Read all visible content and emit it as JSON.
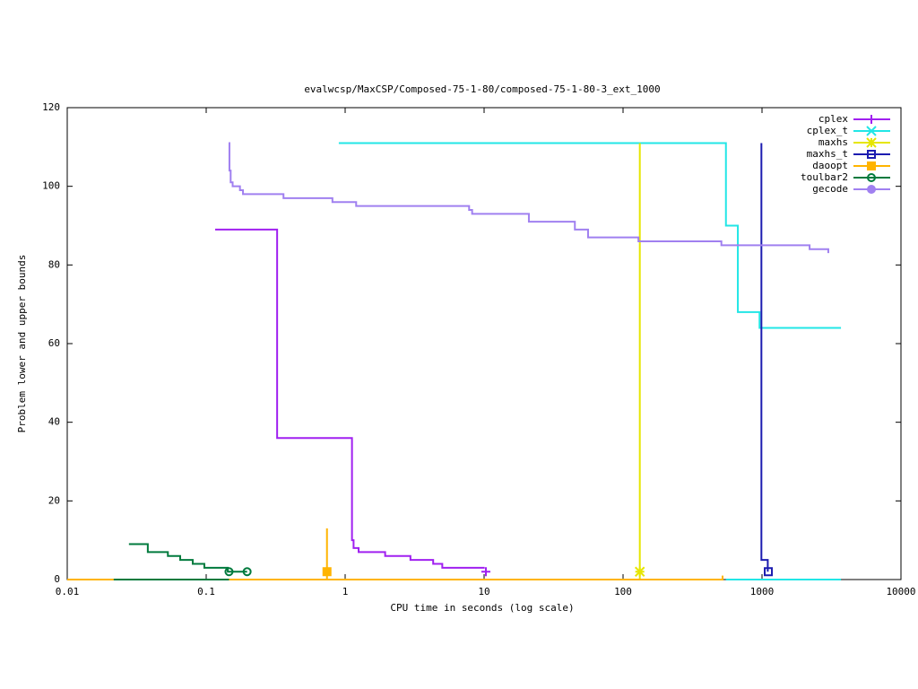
{
  "chart_data": {
    "type": "line",
    "title": "evalwcsp/MaxCSP/Composed-75-1-80/composed-75-1-80-3_ext_1000",
    "x_label": "CPU time in seconds (log scale)",
    "y_label": "Problem lower and upper bounds",
    "x_log": true,
    "line_shape": "steps",
    "xlim": [
      0.01,
      10000
    ],
    "ylim": [
      0,
      120
    ],
    "xticks": [
      0.01,
      0.1,
      1,
      10,
      100,
      1000,
      10000
    ],
    "yticks": [
      0,
      20,
      40,
      60,
      80,
      100,
      120
    ],
    "legend": "top-right",
    "series": [
      {
        "name": "cplex",
        "color": "#a020f0",
        "marker": "plus",
        "x": [
          0.116,
          0.324,
          1.12,
          1.15,
          1.25,
          1.94,
          2.95,
          4.3,
          5.0,
          10.1
        ],
        "values": [
          89,
          36,
          10,
          8,
          7,
          6,
          5,
          4,
          3,
          3
        ],
        "marker_x": [
          10.3
        ],
        "marker_values": [
          2
        ]
      },
      {
        "name": "cplex_t",
        "color": "#22e6e6",
        "marker": "cross",
        "x": [
          0.9,
          550,
          670,
          960,
          3700
        ],
        "values": [
          111,
          90,
          68,
          64,
          64
        ],
        "lower_x": [
          550,
          3700
        ],
        "lower_values": [
          0,
          0
        ]
      },
      {
        "name": "maxhs",
        "color": "#e6e600",
        "marker": "star",
        "x": [
          132,
          132
        ],
        "values": [
          111,
          0
        ],
        "marker_x": [
          132
        ],
        "marker_values": [
          2
        ]
      },
      {
        "name": "maxhs_t",
        "color": "#1c1cb0",
        "marker": "square",
        "x": [
          990,
          990,
          1100
        ],
        "values": [
          111,
          5,
          2
        ],
        "marker_x": [
          1110
        ],
        "marker_values": [
          2
        ]
      },
      {
        "name": "daoopt",
        "color": "#ffb400",
        "marker": "filled-square",
        "x": [
          0.01,
          0.74,
          0.74,
          520,
          520
        ],
        "values": [
          0,
          13,
          0,
          0,
          1
        ],
        "marker_x": [
          0.74
        ],
        "marker_values": [
          2
        ]
      },
      {
        "name": "toulbar2",
        "color": "#007a3d",
        "marker": "circle",
        "x": [
          0.0278,
          0.038,
          0.053,
          0.065,
          0.08,
          0.097,
          0.143,
          0.197
        ],
        "values": [
          9,
          7,
          6,
          5,
          4,
          3,
          2,
          2
        ],
        "lower_x": [
          0.0216,
          0.146
        ],
        "lower_values": [
          0,
          0
        ],
        "marker_x": [
          0.146,
          0.197
        ],
        "marker_values": [
          2,
          2
        ]
      },
      {
        "name": "gecode",
        "color": "#a080f0",
        "marker": "filled-circle",
        "x": [
          0.145,
          0.147,
          0.15,
          0.155,
          0.175,
          0.184,
          0.36,
          0.81,
          1.2,
          7.8,
          8.2,
          21,
          45,
          56,
          129,
          510,
          2200,
          3000
        ],
        "values": [
          111,
          104,
          101,
          100,
          99,
          98,
          97,
          96,
          95,
          94,
          93,
          91,
          89,
          87,
          86,
          85,
          84,
          83
        ]
      }
    ]
  }
}
